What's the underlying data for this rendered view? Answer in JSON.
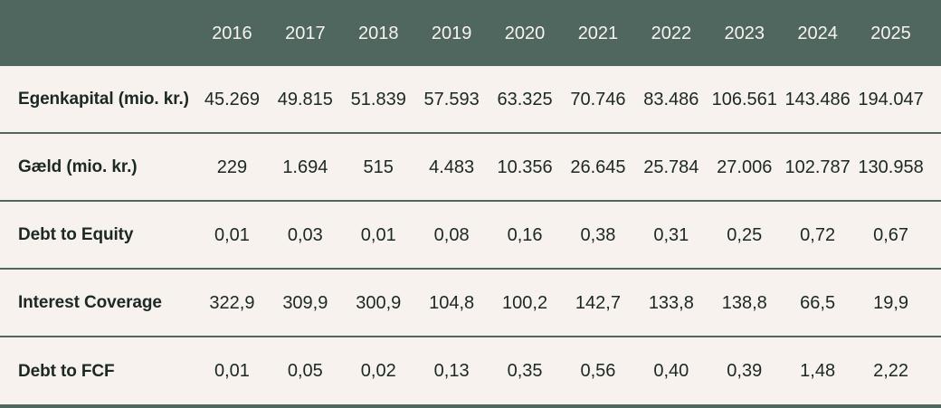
{
  "colors": {
    "header_bg": "#50675F",
    "header_text": "#F7F3EF",
    "body_bg": "#F7F2EE",
    "divider": "#50675F",
    "text": "#1B2823"
  },
  "chart_data": {
    "type": "table",
    "corner_label": "",
    "columns": [
      "2016",
      "2017",
      "2018",
      "2019",
      "2020",
      "2021",
      "2022",
      "2023",
      "2024",
      "2025"
    ],
    "rows": [
      {
        "label": "Egenkapital (mio. kr.)",
        "values": [
          "45.269",
          "49.815",
          "51.839",
          "57.593",
          "63.325",
          "70.746",
          "83.486",
          "106.561",
          "143.486",
          "194.047"
        ]
      },
      {
        "label": "Gæld (mio. kr.)",
        "values": [
          "229",
          "1.694",
          "515",
          "4.483",
          "10.356",
          "26.645",
          "25.784",
          "27.006",
          "102.787",
          "130.958"
        ]
      },
      {
        "label": "Debt to Equity",
        "values": [
          "0,01",
          "0,03",
          "0,01",
          "0,08",
          "0,16",
          "0,38",
          "0,31",
          "0,25",
          "0,72",
          "0,67"
        ]
      },
      {
        "label": "Interest Coverage",
        "values": [
          "322,9",
          "309,9",
          "300,9",
          "104,8",
          "100,2",
          "142,7",
          "133,8",
          "138,8",
          "66,5",
          "19,9"
        ]
      },
      {
        "label": "Debt to FCF",
        "values": [
          "0,01",
          "0,05",
          "0,02",
          "0,13",
          "0,35",
          "0,56",
          "0,40",
          "0,39",
          "1,48",
          "2,22"
        ]
      }
    ]
  }
}
